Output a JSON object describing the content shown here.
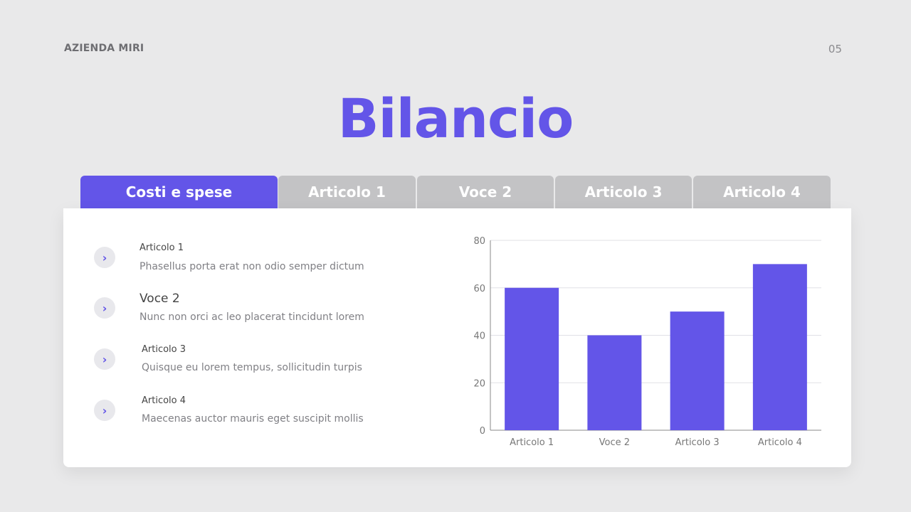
{
  "header": {
    "brand": "AZIENDA MIRI",
    "page_number": "05",
    "title": "Bilancio"
  },
  "tabs": [
    {
      "label": "Costi e spese",
      "active": true
    },
    {
      "label": "Articolo 1"
    },
    {
      "label": "Voce 2"
    },
    {
      "label": "Articolo 3"
    },
    {
      "label": "Articolo 4"
    }
  ],
  "items": [
    {
      "title": "Articolo 1",
      "desc": "Phasellus porta erat non odio semper dictum",
      "icon": "chevron-right-icon"
    },
    {
      "title": "Voce 2",
      "desc": "Nunc non orci ac leo placerat tincidunt lorem",
      "icon": "chevron-right-icon"
    },
    {
      "title": "Articolo 3",
      "desc": "Quisque eu lorem tempus, sollicitudin turpis",
      "icon": "chevron-right-icon"
    },
    {
      "title": "Articolo 4",
      "desc": "Maecenas auctor mauris eget suscipit mollis",
      "icon": "chevron-right-icon"
    }
  ],
  "colors": {
    "accent": "#6355e8",
    "tab_inactive": "#c3c3c5"
  },
  "chart_data": {
    "type": "bar",
    "categories": [
      "Articolo 1",
      "Voce 2",
      "Articolo 3",
      "Articolo 4"
    ],
    "values": [
      60,
      40,
      50,
      70
    ],
    "ylim": [
      0,
      80
    ],
    "yticks": [
      "0",
      "20",
      "40",
      "60",
      "80"
    ],
    "grid": true,
    "color": "#6355e8",
    "title": "",
    "xlabel": "",
    "ylabel": ""
  }
}
